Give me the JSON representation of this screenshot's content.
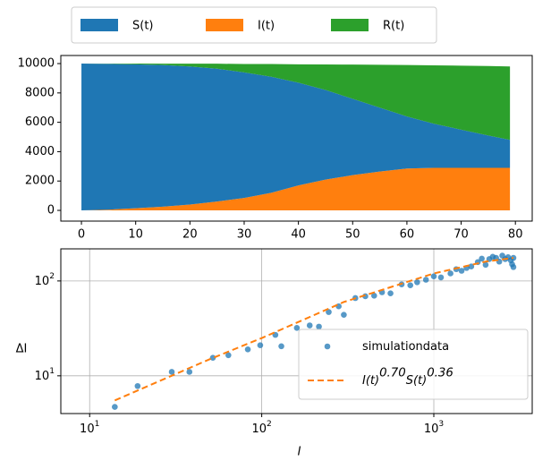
{
  "chart_data": [
    {
      "type": "stackarea",
      "x": [
        0,
        5,
        10,
        15,
        20,
        25,
        30,
        35,
        40,
        45,
        50,
        55,
        60,
        65,
        70,
        75,
        79
      ],
      "series": [
        {
          "name": "S(t)",
          "color": "#1f77b4",
          "values": [
            10000,
            9930,
            9800,
            9650,
            9400,
            9050,
            8550,
            7900,
            7000,
            6100,
            5200,
            4350,
            3550,
            3000,
            2600,
            2200,
            1900
          ]
        },
        {
          "name": "I(t)",
          "color": "#ff7f0e",
          "values": [
            0,
            50,
            150,
            250,
            400,
            600,
            850,
            1200,
            1700,
            2100,
            2400,
            2650,
            2850,
            2900,
            2900,
            2900,
            2900
          ]
        },
        {
          "name": "R(t)",
          "color": "#2ca02c",
          "values": [
            0,
            10,
            50,
            90,
            190,
            340,
            570,
            870,
            1250,
            1740,
            2330,
            2920,
            3500,
            3980,
            4360,
            4730,
            5000
          ]
        }
      ],
      "stack_order": [
        1,
        0,
        2
      ],
      "xlim": [
        -3.8,
        83.1
      ],
      "xticks": [
        0,
        10,
        20,
        30,
        40,
        50,
        60,
        70,
        80
      ],
      "ylim": [
        -730,
        10550
      ],
      "yticks": [
        0,
        2000,
        4000,
        6000,
        8000,
        10000
      ],
      "grid": false,
      "legend": "top"
    },
    {
      "type": "scatter-line",
      "xlabel": "I",
      "ylabel": "ΔI",
      "log_x": true,
      "log_y": true,
      "grid": true,
      "legend": "lower right",
      "series": [
        {
          "name": "simulation data",
          "color": "#1f77b4",
          "kind": "scatter",
          "x": [
            14,
            19,
            30,
            38,
            52,
            64,
            83,
            98,
            120,
            130,
            160,
            190,
            215,
            245,
            280,
            300,
            350,
            400,
            450,
            500,
            560,
            650,
            730,
            800,
            900,
            1000,
            1100,
            1250,
            1350,
            1450,
            1550,
            1650,
            1800,
            1900,
            2000,
            2100,
            2200,
            2300,
            2400,
            2500,
            2600,
            2700,
            2800,
            2850,
            2900,
            2900
          ],
          "values": [
            4.7,
            7.8,
            11,
            11,
            15.5,
            16.5,
            19,
            21,
            27,
            20.5,
            32,
            34,
            33,
            47,
            54,
            44,
            66,
            69,
            70,
            76,
            74,
            92,
            90,
            97,
            103,
            112,
            109,
            120,
            133,
            128,
            137,
            142,
            158,
            172,
            148,
            170,
            180,
            175,
            160,
            185,
            170,
            178,
            165,
            150,
            140,
            175
          ]
        },
        {
          "name": "I(t)^0.70 S(t)^0.36",
          "color": "#ff7f0e",
          "kind": "line",
          "dashed": true,
          "x": [
            14,
            50,
            100,
            300,
            1000,
            2000,
            2900
          ],
          "values": [
            5.5,
            15,
            25,
            60,
            120,
            160,
            175
          ]
        }
      ],
      "xlim": [
        6.8,
        3730
      ],
      "xticks": [
        {
          "value": 10,
          "label": "10^1"
        },
        {
          "value": 100,
          "label": "10^2"
        },
        {
          "value": 1000,
          "label": "10^3"
        }
      ],
      "ylim": [
        4,
        218
      ],
      "yticks": [
        {
          "value": 10,
          "label": "10^1"
        },
        {
          "value": 100,
          "label": "10^2"
        }
      ]
    }
  ]
}
